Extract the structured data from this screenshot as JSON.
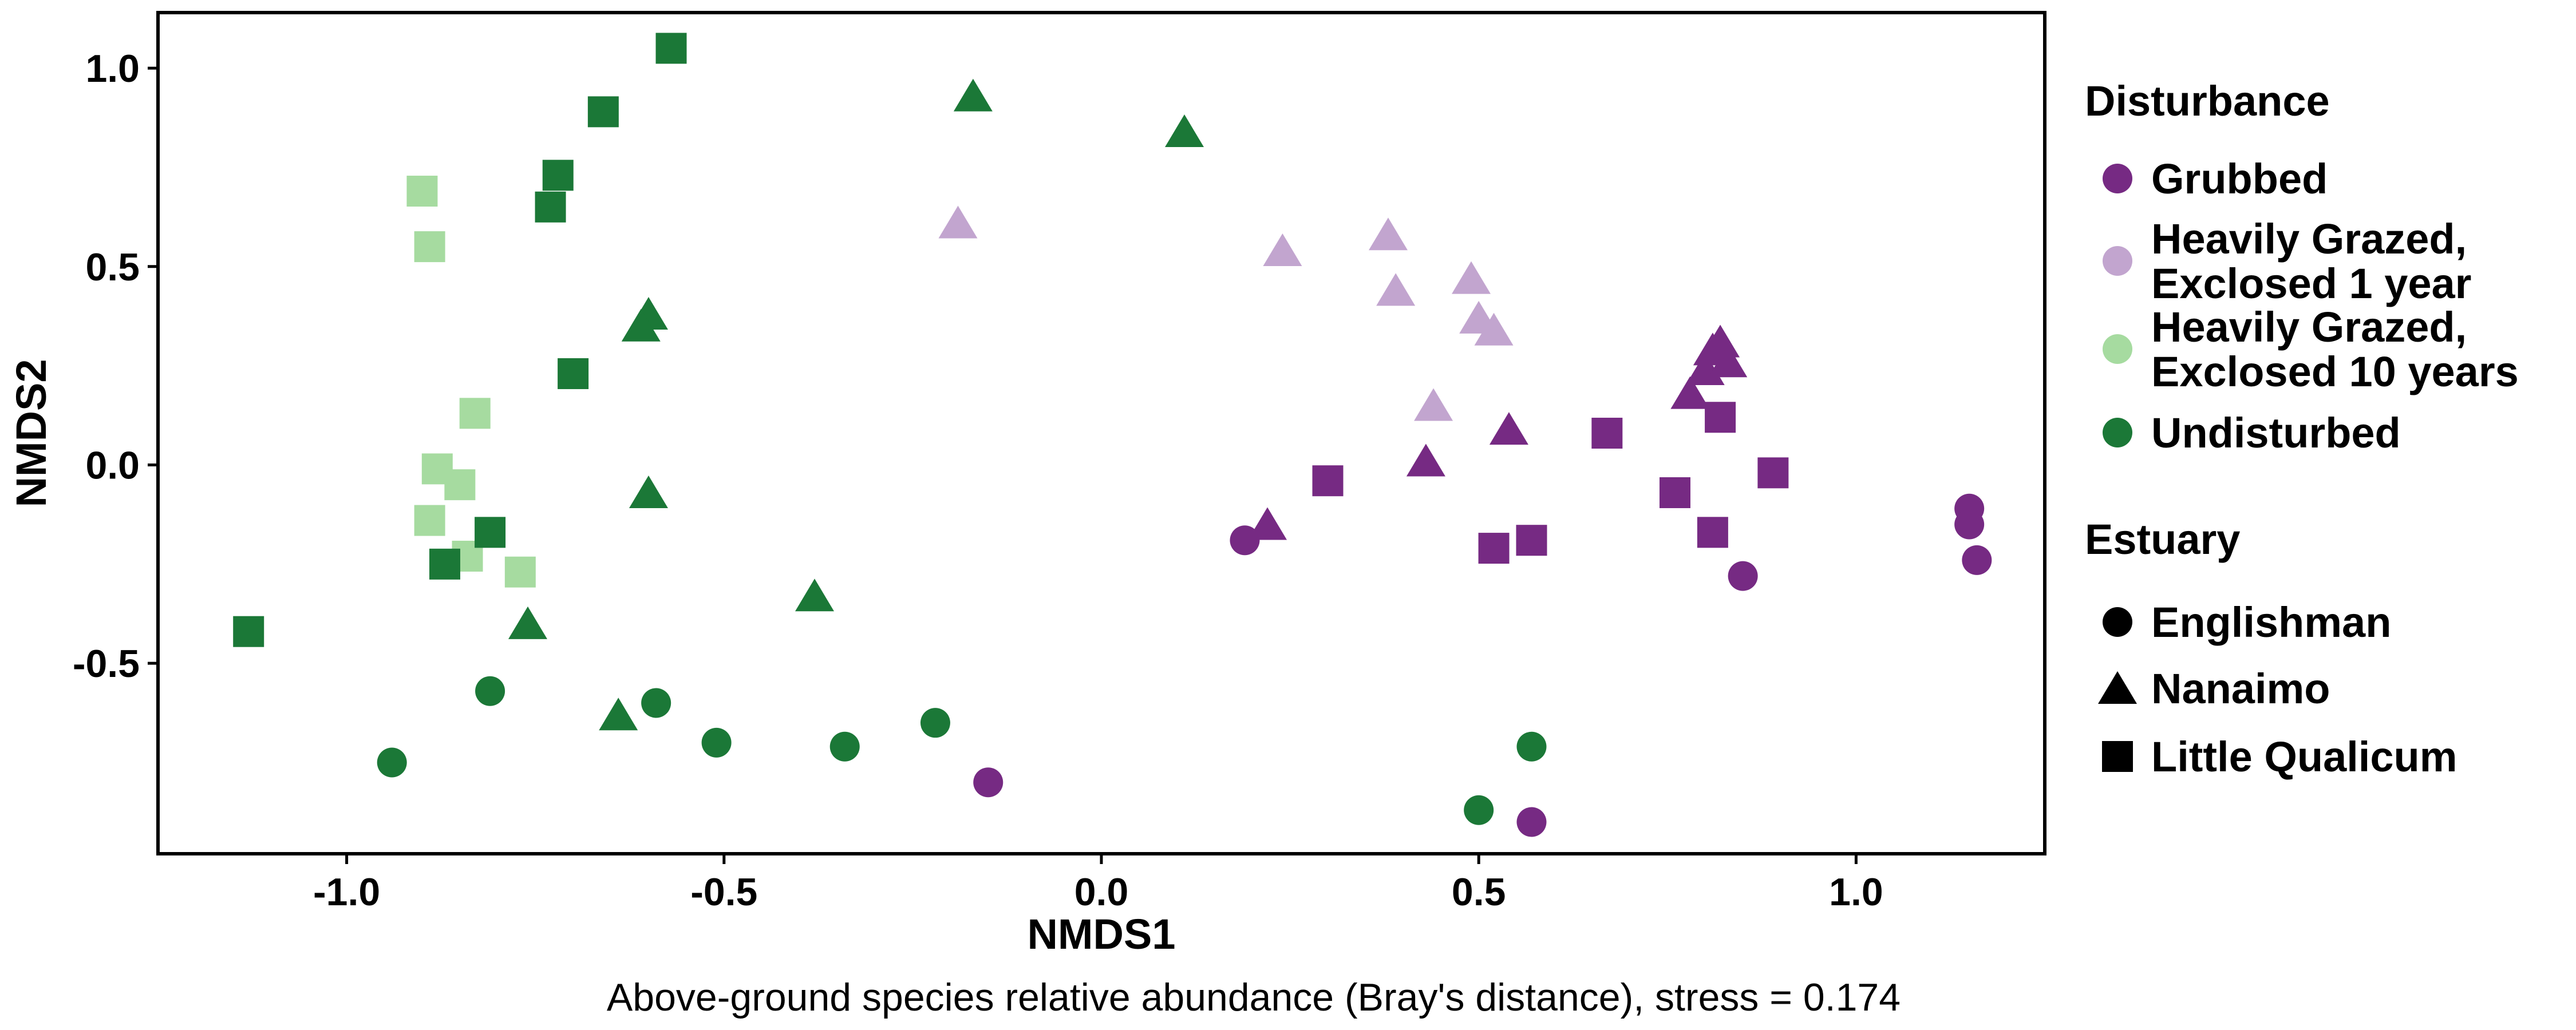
{
  "chart_data": {
    "type": "scatter",
    "xlabel": "NMDS1",
    "ylabel": "NMDS2",
    "caption": "Above-ground species relative abundance (Bray's distance), stress = 0.174",
    "xlim": [
      -1.25,
      1.25
    ],
    "ylim": [
      -0.98,
      1.14
    ],
    "x_ticks": [
      -1.0,
      -0.5,
      0.0,
      0.5,
      1.0
    ],
    "x_tick_labels": [
      "-1.0",
      "-0.5",
      "0.0",
      "0.5",
      "1.0"
    ],
    "y_ticks": [
      -0.5,
      0.0,
      0.5,
      1.0
    ],
    "y_tick_labels": [
      "-0.5",
      "0.0",
      "0.5",
      "1.0"
    ],
    "grid": false,
    "legend_placement": "right",
    "legends": {
      "disturbance": {
        "title": "Disturbance",
        "items": [
          {
            "lines": [
              "Grubbed"
            ],
            "color": "#762a83"
          },
          {
            "lines": [
              "Heavily Grazed,",
              "Exclosed 1 year"
            ],
            "color": "#c2a5cf"
          },
          {
            "lines": [
              "Heavily Grazed,",
              "Exclosed 10 years"
            ],
            "color": "#a6dba0"
          },
          {
            "lines": [
              "Undisturbed"
            ],
            "color": "#1b7837"
          }
        ]
      },
      "estuary": {
        "title": "Estuary",
        "items": [
          {
            "label": "Englishman",
            "shape": "circle"
          },
          {
            "label": "Nanaimo",
            "shape": "triangle"
          },
          {
            "label": "Little Qualicum",
            "shape": "square"
          }
        ]
      }
    },
    "series": [
      {
        "disturbance": "Grubbed",
        "estuary": "Englishman",
        "color": "#762a83",
        "shape": "circle",
        "points": [
          [
            0.19,
            -0.19
          ],
          [
            -0.15,
            -0.8
          ],
          [
            0.85,
            -0.28
          ],
          [
            1.15,
            -0.11
          ],
          [
            1.15,
            -0.15
          ],
          [
            1.16,
            -0.24
          ],
          [
            0.57,
            -0.9
          ]
        ]
      },
      {
        "disturbance": "Grubbed",
        "estuary": "Nanaimo",
        "color": "#762a83",
        "shape": "triangle",
        "points": [
          [
            0.22,
            -0.15
          ],
          [
            0.43,
            0.01
          ],
          [
            0.54,
            0.09
          ],
          [
            0.78,
            0.18
          ],
          [
            0.8,
            0.24
          ],
          [
            0.81,
            0.29
          ],
          [
            0.82,
            0.31
          ],
          [
            0.83,
            0.26
          ]
        ]
      },
      {
        "disturbance": "Grubbed",
        "estuary": "Little Qualicum",
        "color": "#762a83",
        "shape": "square",
        "points": [
          [
            0.3,
            -0.04
          ],
          [
            0.52,
            -0.21
          ],
          [
            0.57,
            -0.19
          ],
          [
            0.67,
            0.08
          ],
          [
            0.76,
            -0.07
          ],
          [
            0.81,
            -0.17
          ],
          [
            0.82,
            0.12
          ],
          [
            0.89,
            -0.02
          ]
        ]
      },
      {
        "disturbance": "Heavily Grazed, Exclosed 1 year",
        "estuary": "Nanaimo",
        "color": "#c2a5cf",
        "shape": "triangle",
        "points": [
          [
            -0.19,
            0.61
          ],
          [
            0.24,
            0.54
          ],
          [
            0.38,
            0.58
          ],
          [
            0.39,
            0.44
          ],
          [
            0.44,
            0.15
          ],
          [
            0.49,
            0.47
          ],
          [
            0.5,
            0.37
          ],
          [
            0.52,
            0.34
          ]
        ]
      },
      {
        "disturbance": "Heavily Grazed, Exclosed 10 years",
        "estuary": "Little Qualicum",
        "color": "#a6dba0",
        "shape": "square",
        "points": [
          [
            -0.9,
            0.69
          ],
          [
            -0.89,
            0.55
          ],
          [
            -0.83,
            0.13
          ],
          [
            -0.88,
            -0.01
          ],
          [
            -0.85,
            -0.05
          ],
          [
            -0.89,
            -0.14
          ],
          [
            -0.84,
            -0.23
          ],
          [
            -0.77,
            -0.27
          ]
        ]
      },
      {
        "disturbance": "Undisturbed",
        "estuary": "Englishman",
        "color": "#1b7837",
        "shape": "circle",
        "points": [
          [
            -0.94,
            -0.75
          ],
          [
            -0.81,
            -0.57
          ],
          [
            -0.59,
            -0.6
          ],
          [
            -0.51,
            -0.7
          ],
          [
            -0.34,
            -0.71
          ],
          [
            -0.22,
            -0.65
          ],
          [
            0.5,
            -0.87
          ],
          [
            0.57,
            -0.71
          ]
        ]
      },
      {
        "disturbance": "Undisturbed",
        "estuary": "Nanaimo",
        "color": "#1b7837",
        "shape": "triangle",
        "points": [
          [
            -0.17,
            0.93
          ],
          [
            0.11,
            0.84
          ],
          [
            -0.6,
            0.38
          ],
          [
            -0.61,
            0.35
          ],
          [
            -0.6,
            -0.07
          ],
          [
            -0.76,
            -0.4
          ],
          [
            -0.38,
            -0.33
          ],
          [
            -0.64,
            -0.63
          ]
        ]
      },
      {
        "disturbance": "Undisturbed",
        "estuary": "Little Qualicum",
        "color": "#1b7837",
        "shape": "square",
        "points": [
          [
            -0.57,
            1.05
          ],
          [
            -0.66,
            0.89
          ],
          [
            -0.72,
            0.73
          ],
          [
            -0.73,
            0.65
          ],
          [
            -0.7,
            0.23
          ],
          [
            -0.81,
            -0.17
          ],
          [
            -0.87,
            -0.25
          ],
          [
            -1.13,
            -0.42
          ]
        ]
      }
    ]
  }
}
